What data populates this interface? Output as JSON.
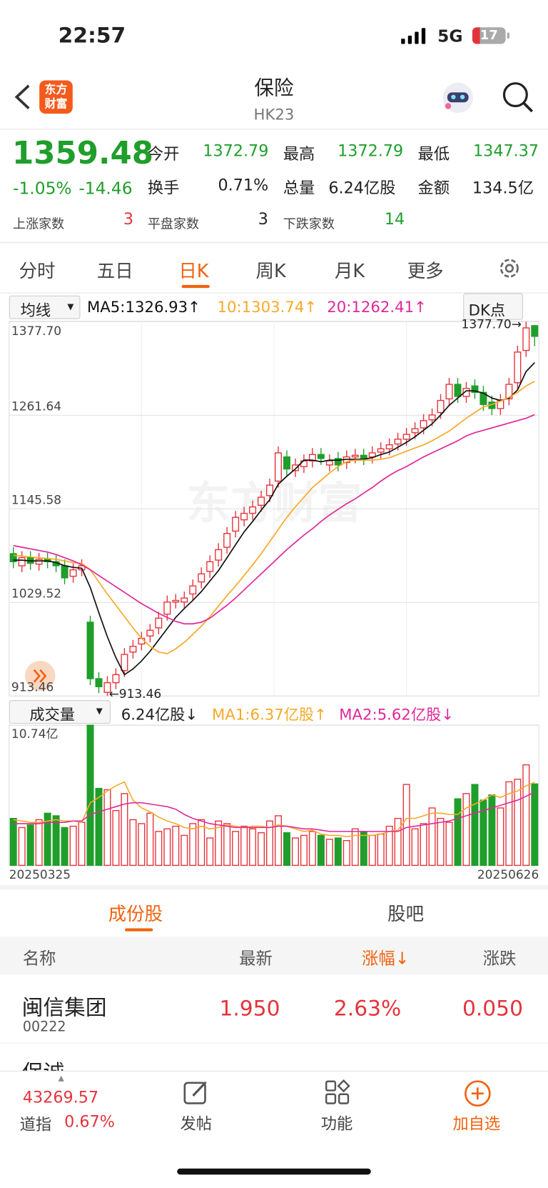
{
  "status": {
    "time": "22:57",
    "network": "5G",
    "battery": "17"
  },
  "header": {
    "logo": "东方财富",
    "title": "保险",
    "code": "HK23"
  },
  "quote": {
    "price": "1359.48",
    "change_pct": "-1.05%",
    "change": "-14.46",
    "stats": [
      [
        "今开",
        "1372.79"
      ],
      [
        "最高",
        "1372.79"
      ],
      [
        "最低",
        "1347.37"
      ],
      [
        "换手",
        "0.71%"
      ],
      [
        "总量",
        "6.24亿股"
      ],
      [
        "金额",
        "134.5亿"
      ],
      [
        "上涨家数",
        "3"
      ],
      [
        "平盘家数",
        "3"
      ],
      [
        "下跌家数",
        "14"
      ]
    ]
  },
  "tabs": [
    "分时",
    "五日",
    "日K",
    "周K",
    "月K",
    "更多"
  ],
  "selectors": {
    "ma": "均线",
    "dk": "DK点"
  },
  "chart_data": [
    {
      "type": "candlestick",
      "watermark": "东方财富",
      "up_color": "#e5333b",
      "down_color": "#1f9e2b",
      "grid": true,
      "ylim": [
        913.46,
        1377.7
      ],
      "yticks": [
        {
          "value": 1377.7,
          "label": "1377.70"
        },
        {
          "value": 1261.64,
          "label": "1261.64"
        },
        {
          "value": 1145.58,
          "label": "1145.58"
        },
        {
          "value": 1029.52,
          "label": "1029.52"
        },
        {
          "value": 913.46,
          "label": "913.46"
        }
      ],
      "annotations": [
        {
          "text": "1377.70→",
          "index": 60
        },
        {
          "text": "←913.46",
          "index": 11
        }
      ],
      "open": [
        1090,
        1075,
        1085,
        1077,
        1083,
        1080,
        1075,
        1062,
        1070,
        1005,
        935,
        918,
        930,
        945,
        968,
        978,
        988,
        998,
        1015,
        1030,
        1030,
        1040,
        1055,
        1068,
        1082,
        1098,
        1118,
        1132,
        1140,
        1150,
        1162,
        1180,
        1210,
        1193,
        1198,
        1205,
        1213,
        1200,
        1208,
        1203,
        1210,
        1212,
        1210,
        1216,
        1220,
        1226,
        1232,
        1240,
        1246,
        1256,
        1265,
        1282,
        1300,
        1285,
        1298,
        1290,
        1278,
        1270,
        1282,
        1302,
        1342,
        1372.79
      ],
      "high": [
        1098,
        1093,
        1093,
        1091,
        1091,
        1088,
        1083,
        1078,
        1083,
        1013,
        943,
        938,
        948,
        973,
        983,
        993,
        1003,
        1018,
        1038,
        1040,
        1043,
        1058,
        1073,
        1088,
        1103,
        1123,
        1143,
        1148,
        1156,
        1168,
        1183,
        1223,
        1218,
        1208,
        1213,
        1221,
        1221,
        1213,
        1216,
        1218,
        1220,
        1220,
        1223,
        1228,
        1233,
        1240,
        1246,
        1253,
        1263,
        1270,
        1288,
        1308,
        1308,
        1303,
        1306,
        1298,
        1286,
        1288,
        1308,
        1348,
        1377.7,
        1372.79
      ],
      "low": [
        1072,
        1067,
        1070,
        1069,
        1072,
        1067,
        1052,
        1054,
        1062,
        927,
        917,
        913.46,
        922,
        937,
        960,
        970,
        980,
        990,
        1007,
        1022,
        1022,
        1032,
        1047,
        1060,
        1074,
        1090,
        1110,
        1124,
        1132,
        1142,
        1154,
        1172,
        1187,
        1185,
        1190,
        1197,
        1200,
        1192,
        1192,
        1195,
        1202,
        1200,
        1202,
        1208,
        1212,
        1218,
        1224,
        1232,
        1238,
        1248,
        1257,
        1274,
        1277,
        1277,
        1282,
        1267,
        1262,
        1262,
        1274,
        1294,
        1334,
        1347.37
      ],
      "close": [
        1080,
        1085,
        1078,
        1083,
        1080,
        1075,
        1060,
        1070,
        1075,
        935,
        925,
        930,
        940,
        965,
        975,
        985,
        995,
        1010,
        1030,
        1032,
        1035,
        1050,
        1065,
        1080,
        1095,
        1115,
        1135,
        1140,
        1148,
        1160,
        1175,
        1215,
        1195,
        1200,
        1205,
        1213,
        1208,
        1205,
        1200,
        1210,
        1212,
        1208,
        1215,
        1220,
        1225,
        1232,
        1238,
        1245,
        1255,
        1262,
        1280,
        1300,
        1285,
        1295,
        1290,
        1275,
        1270,
        1280,
        1300,
        1340,
        1370,
        1359.48
      ],
      "series": [
        {
          "name": "MA5:1326.93↑",
          "color": "#111111",
          "values": [
            1082,
            1082,
            1081,
            1081,
            1081,
            1079,
            1075,
            1073,
            1072,
            1048,
            1017,
            987,
            961,
            940,
            947,
            957,
            969,
            983,
            997,
            1011,
            1022,
            1032,
            1043,
            1056,
            1069,
            1085,
            1101,
            1117,
            1130,
            1144,
            1157,
            1176,
            1186,
            1195,
            1206,
            1206,
            1204,
            1206,
            1206,
            1207,
            1207,
            1207,
            1209,
            1213,
            1216,
            1222,
            1228,
            1235,
            1243,
            1251,
            1262,
            1274,
            1283,
            1292,
            1292,
            1289,
            1283,
            1280,
            1283,
            1293,
            1316,
            1326.93
          ]
        },
        {
          "name": "10:1303.74↑",
          "color": "#f7a928",
          "values": [
            1088,
            1087,
            1086,
            1085,
            1084,
            1083,
            1081,
            1079,
            1078,
            1070,
            1055,
            1040,
            1026,
            1012,
            998,
            985,
            975,
            968,
            966,
            972,
            980,
            990,
            1000,
            1012,
            1025,
            1038,
            1050,
            1063,
            1076,
            1090,
            1105,
            1120,
            1135,
            1148,
            1160,
            1172,
            1181,
            1190,
            1198,
            1204,
            1206,
            1206,
            1206,
            1207,
            1209,
            1213,
            1217,
            1221,
            1225,
            1230,
            1236,
            1242,
            1250,
            1258,
            1265,
            1272,
            1275,
            1279,
            1284,
            1290,
            1298,
            1303.74
          ]
        },
        {
          "name": "20:1262.41↑",
          "color": "#e0279a",
          "values": [
            1100,
            1098,
            1096,
            1094,
            1092,
            1089,
            1085,
            1081,
            1076,
            1070,
            1063,
            1056,
            1049,
            1042,
            1035,
            1028,
            1022,
            1016,
            1011,
            1006,
            1003,
            1003,
            1005,
            1010,
            1018,
            1026,
            1035,
            1045,
            1055,
            1065,
            1075,
            1085,
            1095,
            1104,
            1113,
            1121,
            1130,
            1138,
            1145,
            1152,
            1158,
            1165,
            1172,
            1180,
            1187,
            1193,
            1198,
            1204,
            1210,
            1215,
            1220,
            1225,
            1230,
            1236,
            1240,
            1243,
            1246,
            1249,
            1252,
            1255,
            1258,
            1262.41
          ]
        }
      ]
    },
    {
      "type": "bar",
      "selector": "成交量",
      "total": "6.24亿股↓",
      "ylim": [
        0,
        10.74
      ],
      "yticks": [
        {
          "value": 10.74,
          "label": "10.74亿"
        }
      ],
      "categories": [
        "20250325",
        null,
        null,
        null,
        null,
        null,
        null,
        null,
        null,
        null,
        null,
        null,
        null,
        null,
        null,
        null,
        null,
        null,
        null,
        null,
        null,
        null,
        null,
        null,
        null,
        null,
        null,
        null,
        null,
        null,
        null,
        null,
        null,
        null,
        null,
        null,
        null,
        null,
        null,
        null,
        null,
        null,
        null,
        null,
        null,
        null,
        null,
        null,
        null,
        null,
        null,
        null,
        null,
        null,
        null,
        null,
        null,
        null,
        null,
        null,
        null,
        "20250626"
      ],
      "values": [
        3.6,
        2.9,
        3.1,
        3.5,
        4.0,
        3.8,
        2.9,
        3.0,
        3.3,
        10.74,
        5.9,
        5.8,
        4.2,
        5.5,
        3.5,
        3.2,
        4.0,
        2.6,
        2.8,
        3.0,
        2.3,
        3.2,
        3.5,
        2.1,
        3.4,
        3.2,
        2.6,
        3.0,
        2.8,
        2.5,
        3.4,
        3.8,
        2.5,
        2.1,
        2.3,
        2.6,
        2.3,
        2.0,
        2.1,
        1.9,
        2.8,
        2.6,
        2.3,
        2.4,
        3.0,
        3.6,
        6.2,
        2.8,
        3.2,
        4.4,
        3.6,
        3.3,
        5.1,
        5.5,
        6.2,
        5.0,
        5.4,
        4.4,
        6.4,
        6.6,
        7.7,
        6.24
      ],
      "series": [
        {
          "name": "MA1:6.37亿股↑",
          "color": "#f7a928",
          "values": [
            3.5,
            3.4,
            3.3,
            3.3,
            3.4,
            3.5,
            3.4,
            3.4,
            3.3,
            4.8,
            5.2,
            5.7,
            6.1,
            6.4,
            5.0,
            4.4,
            4.1,
            3.7,
            3.4,
            3.2,
            2.9,
            2.8,
            3.0,
            2.8,
            2.9,
            3.1,
            3.0,
            2.9,
            3.0,
            3.0,
            2.9,
            3.1,
            3.0,
            2.8,
            2.6,
            2.7,
            2.4,
            2.3,
            2.3,
            2.2,
            2.3,
            2.3,
            2.3,
            2.4,
            2.6,
            2.7,
            3.6,
            3.6,
            3.8,
            4.0,
            4.0,
            3.9,
            3.9,
            4.4,
            4.7,
            5.0,
            5.4,
            5.2,
            5.5,
            5.7,
            6.1,
            6.37
          ]
        },
        {
          "name": "MA2:5.62亿股↓",
          "color": "#e0279a",
          "values": [
            3.2,
            3.2,
            3.2,
            3.2,
            3.3,
            3.3,
            3.3,
            3.4,
            3.4,
            3.9,
            4.1,
            4.3,
            4.5,
            4.7,
            4.8,
            4.8,
            4.7,
            4.6,
            4.5,
            4.3,
            3.9,
            3.6,
            3.4,
            3.2,
            3.1,
            3.0,
            2.9,
            2.9,
            2.9,
            2.9,
            2.9,
            3.0,
            3.0,
            2.9,
            2.8,
            2.8,
            2.7,
            2.6,
            2.6,
            2.6,
            2.6,
            2.6,
            2.6,
            2.6,
            2.6,
            2.6,
            2.9,
            3.0,
            3.1,
            3.2,
            3.3,
            3.4,
            3.6,
            3.8,
            4.0,
            4.2,
            4.4,
            4.6,
            4.8,
            5.0,
            5.3,
            5.62
          ]
        }
      ]
    }
  ],
  "sub_tabs": [
    "成份股",
    "股吧"
  ],
  "table": {
    "header": [
      "名称",
      "最新",
      "涨幅↓",
      "涨跌"
    ],
    "rows": [
      {
        "name": "闽信集团",
        "code": "00222",
        "last": "1.950",
        "pct": "2.63%",
        "chg": "0.050"
      },
      {
        "name": "保诚"
      }
    ]
  },
  "bottom": {
    "index_value": "43269.57",
    "index_name": "道指",
    "index_pct": "0.67%",
    "post": "发帖",
    "functions": "功能",
    "add": "加自选"
  }
}
